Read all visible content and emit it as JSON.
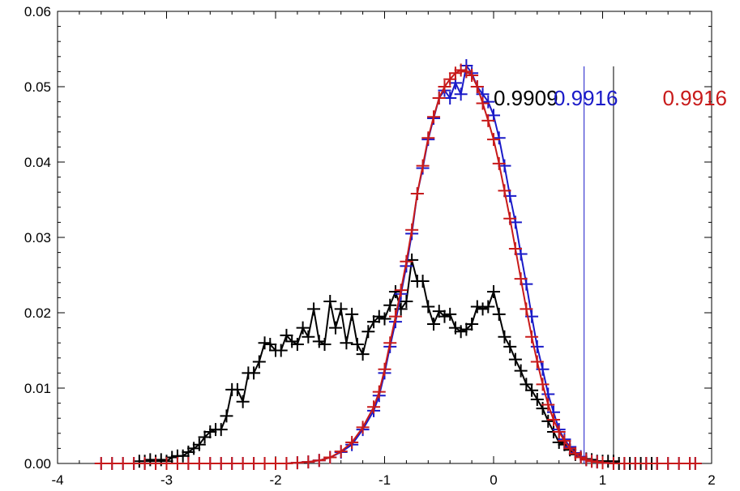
{
  "chart_data": {
    "type": "line",
    "xlim": [
      -4,
      2
    ],
    "ylim": [
      0.0,
      0.06
    ],
    "x_ticks": [
      "-4",
      "-3",
      "-2",
      "-1",
      "0",
      "1",
      "2"
    ],
    "y_ticks": [
      "0.00",
      "0.01",
      "0.02",
      "0.03",
      "0.04",
      "0.05",
      "0.06"
    ],
    "grid": false,
    "annotations": [
      {
        "text": "0.9909",
        "color": "#000000",
        "x": 0.0,
        "y": 0.0485
      },
      {
        "text": "0.9916",
        "color": "#1a1ac8",
        "x": 0.55,
        "y": 0.0485
      },
      {
        "text": "0.9916",
        "color": "#c81a1a",
        "x": 1.55,
        "y": 0.0485
      }
    ],
    "vlines": [
      {
        "x": 0.83,
        "color": "#1a1ac8",
        "ymax": 0.0527
      },
      {
        "x": 1.1,
        "color": "#000000",
        "ymax": 0.0527
      }
    ],
    "series": [
      {
        "color": "#000000",
        "markers": "plus",
        "x": [
          -3.25,
          -3.2,
          -3.15,
          -3.1,
          -3.05,
          -3.0,
          -2.95,
          -2.9,
          -2.85,
          -2.8,
          -2.75,
          -2.7,
          -2.65,
          -2.6,
          -2.55,
          -2.5,
          -2.45,
          -2.4,
          -2.35,
          -2.3,
          -2.25,
          -2.2,
          -2.15,
          -2.1,
          -2.05,
          -2.0,
          -1.95,
          -1.9,
          -1.85,
          -1.8,
          -1.75,
          -1.7,
          -1.65,
          -1.6,
          -1.55,
          -1.5,
          -1.45,
          -1.4,
          -1.35,
          -1.3,
          -1.25,
          -1.2,
          -1.15,
          -1.1,
          -1.05,
          -1.0,
          -0.95,
          -0.9,
          -0.85,
          -0.8,
          -0.75,
          -0.7,
          -0.65,
          -0.6,
          -0.55,
          -0.5,
          -0.45,
          -0.4,
          -0.35,
          -0.3,
          -0.25,
          -0.2,
          -0.15,
          -0.1,
          -0.05,
          0.0,
          0.05,
          0.1,
          0.15,
          0.2,
          0.25,
          0.3,
          0.35,
          0.4,
          0.45,
          0.5,
          0.55,
          0.6,
          0.65,
          0.7,
          0.75,
          0.8,
          0.85,
          0.9,
          0.95,
          1.0,
          1.05,
          1.1,
          1.15,
          1.2,
          1.25,
          1.3,
          1.35,
          1.4,
          1.45,
          1.5
        ],
        "y": [
          0.0003,
          0.0003,
          0.0005,
          0.0003,
          0.0005,
          0.0003,
          0.0008,
          0.001,
          0.001,
          0.0015,
          0.002,
          0.0025,
          0.0035,
          0.0042,
          0.0045,
          0.0045,
          0.0063,
          0.0098,
          0.0098,
          0.0082,
          0.012,
          0.012,
          0.0135,
          0.016,
          0.0158,
          0.015,
          0.015,
          0.017,
          0.0162,
          0.0158,
          0.018,
          0.0168,
          0.0205,
          0.0162,
          0.0158,
          0.0215,
          0.018,
          0.0205,
          0.016,
          0.0198,
          0.0158,
          0.0145,
          0.0175,
          0.0188,
          0.0195,
          0.0192,
          0.021,
          0.0228,
          0.0205,
          0.0215,
          0.027,
          0.0242,
          0.0242,
          0.0208,
          0.0185,
          0.0202,
          0.0195,
          0.0198,
          0.018,
          0.0175,
          0.0178,
          0.0185,
          0.0208,
          0.0205,
          0.0208,
          0.0228,
          0.0198,
          0.0168,
          0.0155,
          0.0138,
          0.0123,
          0.0105,
          0.0097,
          0.0085,
          0.0073,
          0.0056,
          0.0042,
          0.0028,
          0.0025,
          0.0018,
          0.0012,
          0.0008,
          0.0006,
          0.0005,
          0.0003,
          0.0003,
          0.0003,
          0.0003,
          0.0,
          0.0,
          0.0,
          0.0,
          0.0,
          0.0,
          0.0,
          0.0
        ]
      },
      {
        "color": "#1a1ac8",
        "markers": "plus",
        "x": [
          -3.6,
          -3.5,
          -3.4,
          -3.3,
          -3.2,
          -3.1,
          -3.0,
          -2.9,
          -2.8,
          -2.7,
          -2.6,
          -2.5,
          -2.4,
          -2.3,
          -2.2,
          -2.1,
          -2.0,
          -1.9,
          -1.8,
          -1.7,
          -1.6,
          -1.5,
          -1.4,
          -1.3,
          -1.2,
          -1.1,
          -1.05,
          -1.0,
          -0.95,
          -0.9,
          -0.85,
          -0.8,
          -0.75,
          -0.7,
          -0.65,
          -0.6,
          -0.55,
          -0.5,
          -0.45,
          -0.4,
          -0.35,
          -0.3,
          -0.25,
          -0.2,
          -0.15,
          -0.1,
          -0.05,
          0.0,
          0.05,
          0.1,
          0.15,
          0.2,
          0.25,
          0.3,
          0.35,
          0.4,
          0.45,
          0.5,
          0.55,
          0.6,
          0.65,
          0.7,
          0.75,
          0.8,
          0.85,
          0.9,
          0.95,
          1.0,
          1.1,
          1.2,
          1.3,
          1.4,
          1.5,
          1.6,
          1.7,
          1.8,
          1.85
        ],
        "y": [
          0.0,
          0.0,
          0.0,
          0.0,
          0.0,
          0.0,
          0.0,
          0.0,
          0.0,
          0.0,
          0.0,
          0.0,
          0.0,
          0.0,
          0.0,
          0.0,
          0.0,
          0.0,
          0.0001,
          0.0002,
          0.0004,
          0.0008,
          0.0015,
          0.0025,
          0.0045,
          0.007,
          0.009,
          0.012,
          0.0155,
          0.0188,
          0.0225,
          0.0262,
          0.0305,
          0.0358,
          0.0392,
          0.043,
          0.0458,
          0.0485,
          0.0495,
          0.0485,
          0.0505,
          0.049,
          0.0528,
          0.0518,
          0.05,
          0.049,
          0.048,
          0.0462,
          0.0432,
          0.0395,
          0.0355,
          0.032,
          0.0278,
          0.0238,
          0.0195,
          0.0155,
          0.0125,
          0.0092,
          0.0068,
          0.0045,
          0.0032,
          0.0022,
          0.0014,
          0.0009,
          0.0005,
          0.0003,
          0.0002,
          0.0001,
          0.0,
          0.0,
          0.0,
          0.0,
          0.0,
          0.0,
          0.0,
          0.0,
          0.0
        ]
      },
      {
        "color": "#c81a1a",
        "markers": "plus",
        "x": [
          -3.6,
          -3.5,
          -3.4,
          -3.3,
          -3.2,
          -3.1,
          -3.0,
          -2.9,
          -2.8,
          -2.7,
          -2.6,
          -2.5,
          -2.4,
          -2.3,
          -2.2,
          -2.1,
          -2.0,
          -1.9,
          -1.8,
          -1.7,
          -1.6,
          -1.5,
          -1.4,
          -1.3,
          -1.2,
          -1.1,
          -1.05,
          -1.0,
          -0.95,
          -0.9,
          -0.85,
          -0.8,
          -0.75,
          -0.7,
          -0.65,
          -0.6,
          -0.55,
          -0.5,
          -0.45,
          -0.4,
          -0.35,
          -0.3,
          -0.25,
          -0.2,
          -0.15,
          -0.1,
          -0.05,
          0.0,
          0.05,
          0.1,
          0.15,
          0.2,
          0.25,
          0.3,
          0.35,
          0.4,
          0.45,
          0.5,
          0.55,
          0.6,
          0.65,
          0.7,
          0.75,
          0.8,
          0.85,
          0.9,
          0.95,
          1.0,
          1.1,
          1.2,
          1.3,
          1.4,
          1.5,
          1.6,
          1.7,
          1.8,
          1.85
        ],
        "y": [
          0.0,
          0.0,
          0.0,
          0.0,
          0.0,
          0.0,
          0.0,
          0.0,
          0.0,
          0.0,
          0.0,
          0.0,
          0.0,
          0.0,
          0.0,
          0.0,
          0.0,
          0.0,
          0.0001,
          0.0002,
          0.0004,
          0.0008,
          0.0016,
          0.0028,
          0.0048,
          0.0075,
          0.0095,
          0.0125,
          0.016,
          0.0195,
          0.023,
          0.0268,
          0.031,
          0.0358,
          0.0395,
          0.0432,
          0.046,
          0.0485,
          0.05,
          0.051,
          0.0518,
          0.0522,
          0.052,
          0.0515,
          0.05,
          0.0478,
          0.0455,
          0.043,
          0.0398,
          0.0362,
          0.0325,
          0.0285,
          0.0245,
          0.0205,
          0.0168,
          0.0135,
          0.0105,
          0.0078,
          0.0058,
          0.0042,
          0.003,
          0.002,
          0.0013,
          0.0008,
          0.0005,
          0.0003,
          0.0002,
          0.0001,
          0.0,
          0.0,
          0.0,
          0.0,
          0.0,
          0.0,
          0.0,
          0.0,
          0.0
        ]
      }
    ]
  }
}
